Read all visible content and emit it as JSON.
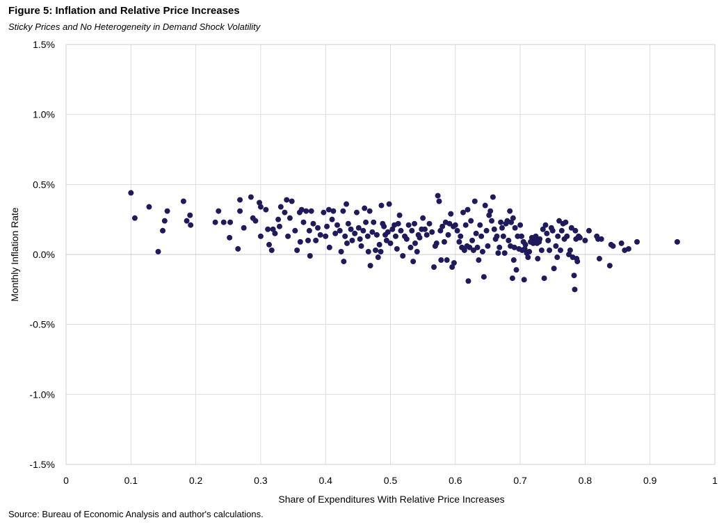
{
  "figure": {
    "title": "Figure 5: Inflation and Relative Price Increases",
    "subtitle": "Sticky Prices and No Heterogeneity in Demand Shock Volatility",
    "source": "Source: Bureau of Economic Analysis and author's calculations."
  },
  "chart_data": {
    "type": "scatter",
    "xlabel": "Share of Expenditures With Relative Price Increases",
    "ylabel": "Monthly Inflation Rate",
    "xlim": [
      0,
      1
    ],
    "ylim": [
      -1.5,
      1.5
    ],
    "y_unit": "%",
    "grid": true,
    "legend": "none",
    "marker_color": "#1f1a5c",
    "x_tick_labels": [
      "0",
      "0.1",
      "0.2",
      "0.3",
      "0.4",
      "0.5",
      "0.6",
      "0.7",
      "0.8",
      "0.9",
      "1"
    ],
    "y_tick_labels": [
      "1.5%",
      "1.0%",
      "0.5%",
      "0.0%",
      "-0.5%",
      "-1.0%",
      "-1.5%"
    ],
    "points": [
      [
        0.1,
        0.44
      ],
      [
        0.106,
        0.26
      ],
      [
        0.128,
        0.34
      ],
      [
        0.142,
        0.02
      ],
      [
        0.149,
        0.17
      ],
      [
        0.152,
        0.24
      ],
      [
        0.156,
        0.31
      ],
      [
        0.181,
        0.38
      ],
      [
        0.186,
        0.24
      ],
      [
        0.191,
        0.28
      ],
      [
        0.192,
        0.21
      ],
      [
        0.23,
        0.23
      ],
      [
        0.235,
        0.31
      ],
      [
        0.243,
        0.23
      ],
      [
        0.253,
        0.23
      ],
      [
        0.252,
        0.12
      ],
      [
        0.265,
        0.04
      ],
      [
        0.268,
        0.31
      ],
      [
        0.268,
        0.39
      ],
      [
        0.274,
        0.19
      ],
      [
        0.285,
        0.41
      ],
      [
        0.288,
        0.26
      ],
      [
        0.292,
        0.24
      ],
      [
        0.298,
        0.37
      ],
      [
        0.3,
        0.34
      ],
      [
        0.3,
        0.13
      ],
      [
        0.308,
        0.32
      ],
      [
        0.311,
        0.18
      ],
      [
        0.313,
        0.07
      ],
      [
        0.317,
        0.03
      ],
      [
        0.319,
        0.18
      ],
      [
        0.322,
        0.15
      ],
      [
        0.327,
        0.25
      ],
      [
        0.329,
        0.2
      ],
      [
        0.331,
        0.34
      ],
      [
        0.337,
        0.3
      ],
      [
        0.34,
        0.39
      ],
      [
        0.342,
        0.13
      ],
      [
        0.345,
        0.26
      ],
      [
        0.348,
        0.38
      ],
      [
        0.353,
        0.17
      ],
      [
        0.356,
        0.03
      ],
      [
        0.36,
        0.3
      ],
      [
        0.361,
        0.09
      ],
      [
        0.363,
        0.32
      ],
      [
        0.366,
        0.23
      ],
      [
        0.37,
        0.31
      ],
      [
        0.373,
        0.1
      ],
      [
        0.375,
        0.17
      ],
      [
        0.376,
        -0.01
      ],
      [
        0.378,
        0.31
      ],
      [
        0.381,
        0.22
      ],
      [
        0.385,
        0.1
      ],
      [
        0.388,
        0.19
      ],
      [
        0.392,
        0.14
      ],
      [
        0.397,
        0.3
      ],
      [
        0.4,
        0.13
      ],
      [
        0.402,
        0.2
      ],
      [
        0.405,
        0.32
      ],
      [
        0.406,
        0.05
      ],
      [
        0.41,
        0.25
      ],
      [
        0.412,
        0.31
      ],
      [
        0.415,
        0.15
      ],
      [
        0.418,
        0.21
      ],
      [
        0.422,
        0.17
      ],
      [
        0.424,
        0.02
      ],
      [
        0.427,
        0.31
      ],
      [
        0.43,
        0.13
      ],
      [
        0.428,
        -0.05
      ],
      [
        0.432,
        0.36
      ],
      [
        0.433,
        0.08
      ],
      [
        0.435,
        0.22
      ],
      [
        0.439,
        0.18
      ],
      [
        0.441,
        0.1
      ],
      [
        0.445,
        0.15
      ],
      [
        0.448,
        0.3
      ],
      [
        0.451,
        0.19
      ],
      [
        0.453,
        0.11
      ],
      [
        0.455,
        0.06
      ],
      [
        0.458,
        0.17
      ],
      [
        0.46,
        0.33
      ],
      [
        0.462,
        0.23
      ],
      [
        0.465,
        0.13
      ],
      [
        0.466,
        0.02
      ],
      [
        0.468,
        0.31
      ],
      [
        0.469,
        -0.08
      ],
      [
        0.472,
        0.16
      ],
      [
        0.474,
        0.23
      ],
      [
        0.477,
        0.03
      ],
      [
        0.479,
        0.14
      ],
      [
        0.481,
        -0.02
      ],
      [
        0.483,
        0.07
      ],
      [
        0.485,
        0.02
      ],
      [
        0.486,
        0.35
      ],
      [
        0.488,
        0.22
      ],
      [
        0.49,
        0.2
      ],
      [
        0.492,
        0.14
      ],
      [
        0.494,
        0.1
      ],
      [
        0.496,
        0.16
      ],
      [
        0.498,
        0.36
      ],
      [
        0.5,
        0.08
      ],
      [
        0.503,
        0.18
      ],
      [
        0.506,
        0.21
      ],
      [
        0.508,
        0.13
      ],
      [
        0.51,
        0.04
      ],
      [
        0.512,
        0.22
      ],
      [
        0.514,
        0.28
      ],
      [
        0.516,
        0.17
      ],
      [
        0.519,
        -0.01
      ],
      [
        0.522,
        0.13
      ],
      [
        0.525,
        0.11
      ],
      [
        0.528,
        0.21
      ],
      [
        0.531,
        0.05
      ],
      [
        0.533,
        0.17
      ],
      [
        0.535,
        -0.05
      ],
      [
        0.537,
        0.22
      ],
      [
        0.538,
        0.08
      ],
      [
        0.541,
        0.02
      ],
      [
        0.543,
        0.14
      ],
      [
        0.545,
        0.12
      ],
      [
        0.548,
        0.18
      ],
      [
        0.55,
        0.26
      ],
      [
        0.553,
        0.18
      ],
      [
        0.556,
        0.14
      ],
      [
        0.56,
        0.22
      ],
      [
        0.564,
        0.16
      ],
      [
        0.567,
        -0.09
      ],
      [
        0.569,
        0.06
      ],
      [
        0.571,
        0.08
      ],
      [
        0.573,
        0.42
      ],
      [
        0.575,
        0.38
      ],
      [
        0.577,
        0.17
      ],
      [
        0.578,
        -0.04
      ],
      [
        0.58,
        0.2
      ],
      [
        0.583,
        0.09
      ],
      [
        0.585,
        0.23
      ],
      [
        0.587,
        -0.04
      ],
      [
        0.589,
        0.14
      ],
      [
        0.591,
        0.22
      ],
      [
        0.593,
        0.29
      ],
      [
        0.595,
        -0.09
      ],
      [
        0.597,
        0.2
      ],
      [
        0.598,
        -0.06
      ],
      [
        0.6,
        0.21
      ],
      [
        0.603,
        0.17
      ],
      [
        0.606,
        0.09
      ],
      [
        0.608,
        0.13
      ],
      [
        0.61,
        0.05
      ],
      [
        0.612,
        0.3
      ],
      [
        0.614,
        0.03
      ],
      [
        0.616,
        0.21
      ],
      [
        0.618,
        0.06
      ],
      [
        0.619,
        0.32
      ],
      [
        0.62,
        -0.19
      ],
      [
        0.622,
        0.05
      ],
      [
        0.624,
        0.24
      ],
      [
        0.626,
        0.1
      ],
      [
        0.628,
        0.03
      ],
      [
        0.63,
        0.38
      ],
      [
        0.632,
        0.15
      ],
      [
        0.634,
        0.05
      ],
      [
        0.636,
        -0.04
      ],
      [
        0.638,
        0.21
      ],
      [
        0.64,
        0.13
      ],
      [
        0.642,
        0.02
      ],
      [
        0.644,
        -0.16
      ],
      [
        0.646,
        0.35
      ],
      [
        0.648,
        0.17
      ],
      [
        0.65,
        0.06
      ],
      [
        0.652,
        0.28
      ],
      [
        0.654,
        0.31
      ],
      [
        0.656,
        0.24
      ],
      [
        0.658,
        0.41
      ],
      [
        0.66,
        0.18
      ],
      [
        0.662,
        0.11
      ],
      [
        0.664,
        0.13
      ],
      [
        0.666,
        0.01
      ],
      [
        0.668,
        0.05
      ],
      [
        0.67,
        0.23
      ],
      [
        0.672,
        0.19
      ],
      [
        0.674,
        0.13
      ],
      [
        0.676,
        0.01
      ],
      [
        0.678,
        0.22
      ],
      [
        0.68,
        0.24
      ],
      [
        0.682,
        0.1
      ],
      [
        0.684,
        0.31
      ],
      [
        0.685,
        0.06
      ],
      [
        0.686,
        0.23
      ],
      [
        0.688,
        -0.17
      ],
      [
        0.689,
        0.26
      ],
      [
        0.69,
        -0.04
      ],
      [
        0.691,
        0.05
      ],
      [
        0.692,
        0.19
      ],
      [
        0.694,
        -0.11
      ],
      [
        0.696,
        0.13
      ],
      [
        0.698,
        0.04
      ],
      [
        0.7,
        0.21
      ],
      [
        0.702,
        0.13
      ],
      [
        0.703,
        0.03
      ],
      [
        0.705,
        0.09
      ],
      [
        0.706,
        -0.18
      ],
      [
        0.707,
        0.04
      ],
      [
        0.708,
        0.07
      ],
      [
        0.71,
        0.01
      ],
      [
        0.712,
        -0.02
      ],
      [
        0.714,
        0.02
      ],
      [
        0.716,
        0.09
      ],
      [
        0.718,
        0.12
      ],
      [
        0.72,
        0.08
      ],
      [
        0.722,
        0.11
      ],
      [
        0.724,
        0.13
      ],
      [
        0.726,
        0.08
      ],
      [
        0.727,
        -0.03
      ],
      [
        0.729,
        0.09
      ],
      [
        0.73,
        0.11
      ],
      [
        0.733,
        0.03
      ],
      [
        0.735,
        0.18
      ],
      [
        0.737,
        -0.17
      ],
      [
        0.739,
        0.21
      ],
      [
        0.741,
        0.15
      ],
      [
        0.743,
        0.1
      ],
      [
        0.745,
        0.03
      ],
      [
        0.748,
        0.19
      ],
      [
        0.75,
        0.17
      ],
      [
        0.752,
        -0.1
      ],
      [
        0.755,
        0.06
      ],
      [
        0.757,
        -0.02
      ],
      [
        0.758,
        0.13
      ],
      [
        0.76,
        0.24
      ],
      [
        0.762,
        0.03
      ],
      [
        0.764,
        0.17
      ],
      [
        0.766,
        0.22
      ],
      [
        0.768,
        0.11
      ],
      [
        0.77,
        0.23
      ],
      [
        0.772,
        0.13
      ],
      [
        0.775,
        0.0
      ],
      [
        0.777,
        0.03
      ],
      [
        0.779,
        0.19
      ],
      [
        0.781,
        -0.02
      ],
      [
        0.783,
        -0.15
      ],
      [
        0.784,
        -0.25
      ],
      [
        0.785,
        0.17
      ],
      [
        0.786,
        0.11
      ],
      [
        0.787,
        -0.03
      ],
      [
        0.788,
        -0.05
      ],
      [
        0.79,
        0.13
      ],
      [
        0.792,
        0.12
      ],
      [
        0.8,
        0.1
      ],
      [
        0.806,
        0.17
      ],
      [
        0.818,
        0.13
      ],
      [
        0.82,
        0.11
      ],
      [
        0.822,
        -0.03
      ],
      [
        0.825,
        0.11
      ],
      [
        0.838,
        -0.08
      ],
      [
        0.84,
        0.07
      ],
      [
        0.843,
        0.06
      ],
      [
        0.856,
        0.08
      ],
      [
        0.861,
        0.03
      ],
      [
        0.867,
        0.04
      ],
      [
        0.88,
        0.09
      ],
      [
        0.942,
        0.09
      ]
    ]
  }
}
